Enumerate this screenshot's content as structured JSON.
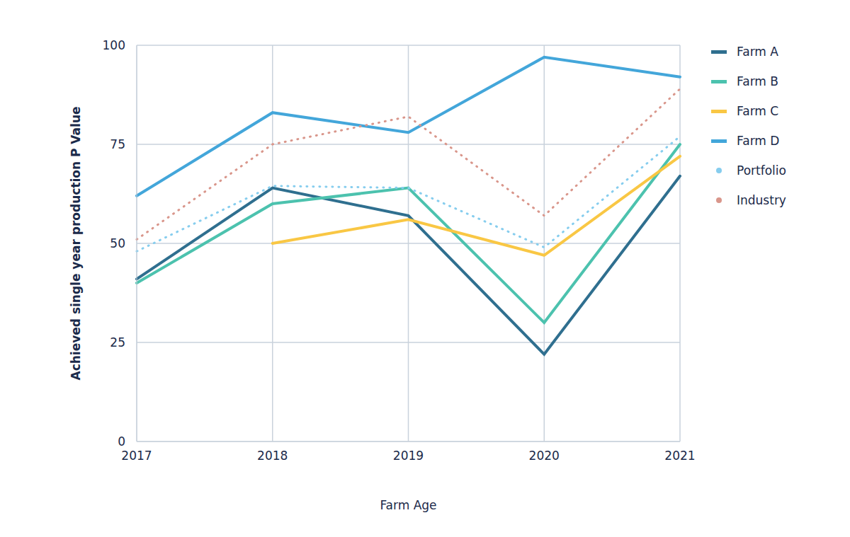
{
  "chart_data": {
    "type": "line",
    "x_label": "Farm Age",
    "y_label": "Achieved single year production P Value",
    "categories": [
      "2017",
      "2018",
      "2019",
      "2020",
      "2021"
    ],
    "ylim": [
      0,
      100
    ],
    "yticks": [
      0,
      25,
      50,
      75,
      100
    ],
    "grid": true,
    "legend": "right",
    "series": [
      {
        "name": "Farm A",
        "color": "#2f6f8f",
        "line_style": "solid",
        "values": [
          41,
          64,
          57,
          22,
          67
        ]
      },
      {
        "name": "Farm B",
        "color": "#4cc2ae",
        "line_style": "solid",
        "values": [
          40,
          60,
          64,
          30,
          75
        ]
      },
      {
        "name": "Farm C",
        "color": "#f9c744",
        "line_style": "solid",
        "values": [
          null,
          50,
          56,
          47,
          72
        ]
      },
      {
        "name": "Farm D",
        "color": "#43a6da",
        "line_style": "solid",
        "values": [
          62,
          83,
          78,
          97,
          92
        ]
      },
      {
        "name": "Portfolio",
        "color": "#86cdee",
        "line_style": "dotted",
        "values": [
          48,
          64.5,
          64,
          49,
          77
        ]
      },
      {
        "name": "Industry",
        "color": "#d9968b",
        "line_style": "dotted",
        "values": [
          51,
          75,
          82,
          57,
          89
        ]
      }
    ]
  }
}
